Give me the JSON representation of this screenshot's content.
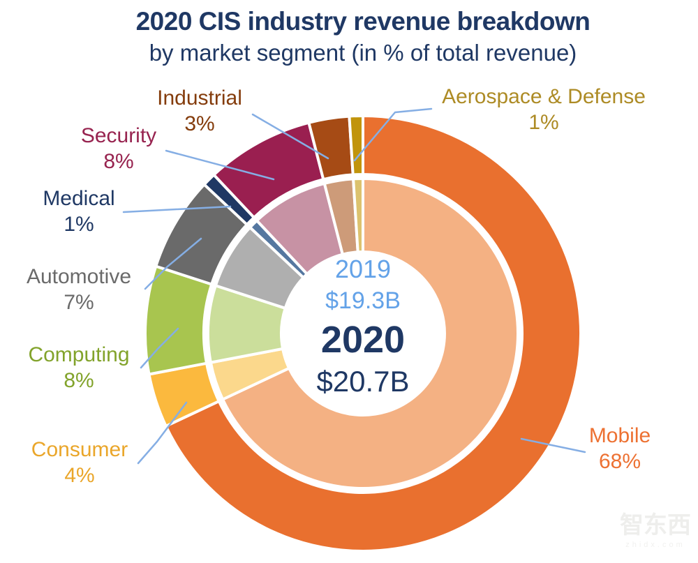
{
  "title": {
    "line1": "2020 CIS industry revenue breakdown",
    "line2": "by market segment (in % of total revenue)"
  },
  "colors": {
    "title_text": "#1F3864",
    "center_2019_text": "#63A2E8",
    "center_2020_text": "#1F3864",
    "leader_line": "#85AEE4",
    "background": "#FFFFFF"
  },
  "chart_data": {
    "type": "donut",
    "title": "2020 CIS industry revenue breakdown",
    "subtitle": "by market segment (in % of total revenue)",
    "start_angle_deg": 0,
    "direction": "clockwise",
    "rings": [
      {
        "id": "outer",
        "year": "2020",
        "total_revenue": "$20.7B"
      },
      {
        "id": "inner",
        "year": "2019",
        "total_revenue": "$19.3B"
      }
    ],
    "segments": [
      {
        "id": "mobile",
        "label": "Mobile",
        "pct": 68,
        "pct_label": "68%",
        "color_2020": "#E9702F",
        "color_2019": "#F4B183",
        "label_color": "#ED7132"
      },
      {
        "id": "consumer",
        "label": "Consumer",
        "pct": 4,
        "pct_label": "4%",
        "color_2020": "#FBB93E",
        "color_2019": "#FBD88C",
        "label_color": "#EAA62A"
      },
      {
        "id": "computing",
        "label": "Computing",
        "pct": 8,
        "pct_label": "8%",
        "color_2020": "#A8C54F",
        "color_2019": "#CBDE9B",
        "label_color": "#82A32B"
      },
      {
        "id": "automotive",
        "label": "Automotive",
        "pct": 7,
        "pct_label": "7%",
        "color_2020": "#6A6A6A",
        "color_2019": "#AFAFAF",
        "label_color": "#6A6A6A"
      },
      {
        "id": "medical",
        "label": "Medical",
        "pct": 1,
        "pct_label": "1%",
        "color_2020": "#1F3864",
        "color_2019": "#5577A0",
        "label_color": "#1F3864"
      },
      {
        "id": "security",
        "label": "Security",
        "pct": 8,
        "pct_label": "8%",
        "color_2020": "#9A1F50",
        "color_2019": "#C792A4",
        "label_color": "#97234F"
      },
      {
        "id": "industrial",
        "label": "Industrial",
        "pct": 3,
        "pct_label": "3%",
        "color_2020": "#A64B15",
        "color_2019": "#CD9B79",
        "label_color": "#843C0C"
      },
      {
        "id": "aerospace",
        "label": "Aerospace & Defense",
        "pct": 1,
        "pct_label": "1%",
        "color_2020": "#C1940B",
        "color_2019": "#DCC26E",
        "label_color": "#AD8B25"
      }
    ]
  },
  "watermark": {
    "logo": "智东西",
    "domain": "zhidx.com"
  }
}
